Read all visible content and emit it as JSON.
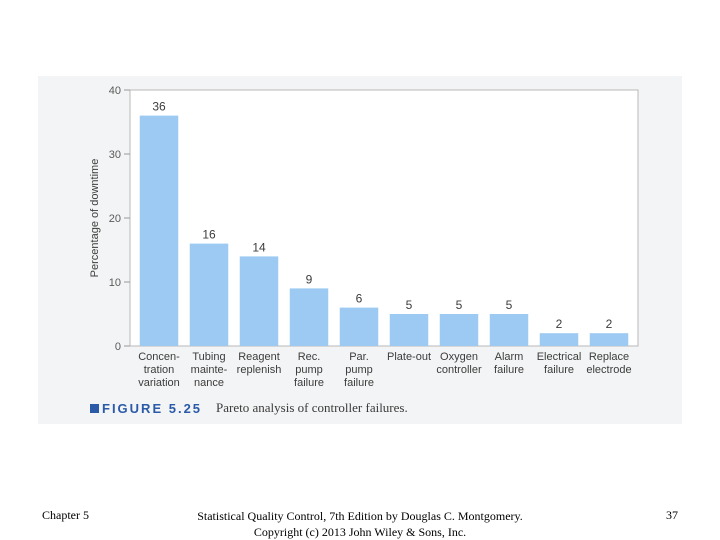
{
  "chart_data": {
    "type": "bar",
    "categories": [
      [
        "Concen-",
        "tration",
        "variation"
      ],
      [
        "Tubing",
        "mainte-",
        "nance"
      ],
      [
        "Reagent",
        "replenish"
      ],
      [
        "Rec.",
        "pump",
        "failure"
      ],
      [
        "Par.",
        "pump",
        "failure"
      ],
      [
        "Plate-out"
      ],
      [
        "Oxygen",
        "controller"
      ],
      [
        "Alarm",
        "failure"
      ],
      [
        "Electrical",
        "failure"
      ],
      [
        "Replace",
        "electrode"
      ]
    ],
    "values": [
      36,
      16,
      14,
      9,
      6,
      5,
      5,
      5,
      2,
      2
    ],
    "ylabel": "Percentage of downtime",
    "ylim": [
      0,
      40
    ],
    "yticks": [
      0,
      10,
      20,
      30,
      40
    ],
    "grid": false,
    "bar_color": "#9ccaf2"
  },
  "caption": {
    "figure_label": "FIGURE 5.25",
    "text": "Pareto analysis of controller failures."
  },
  "footer": {
    "left": "Chapter 5",
    "center_line1": "Statistical Quality Control, 7th Edition by Douglas C. Montgomery.",
    "center_line2": "Copyright (c) 2013 John Wiley & Sons, Inc.",
    "right": "37"
  }
}
